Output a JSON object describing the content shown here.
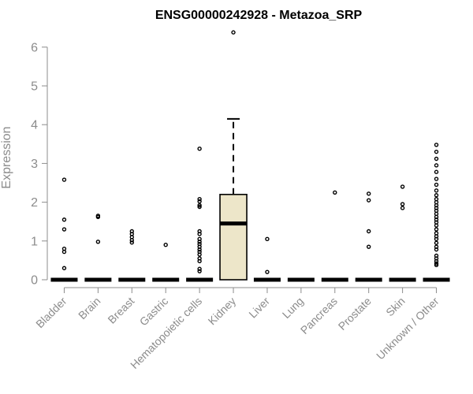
{
  "chart_data": {
    "type": "box",
    "title": "ENSG00000242928 - Metazoa_SRP",
    "xlabel": "",
    "ylabel": "Expression",
    "ylim": [
      0,
      6.5
    ],
    "yticks": [
      0,
      1,
      2,
      3,
      4,
      5,
      6
    ],
    "grid": false,
    "colors": {
      "box_fill": "#ede6c9",
      "stroke": "#000000",
      "tick_text": "#8c8c8c",
      "title": "#000000"
    },
    "categories": [
      "Bladder",
      "Brain",
      "Breast",
      "Gastric",
      "Hematopoietic cells",
      "Kidney",
      "Liver",
      "Lung",
      "Pancreas",
      "Prostate",
      "Skin",
      "Unknown / Other"
    ],
    "boxes": [
      {
        "category": "Bladder",
        "q1": 0,
        "median": 0,
        "q3": 0,
        "whisker_low": 0,
        "whisker_high": 0,
        "outliers": [
          2.58,
          1.55,
          1.3,
          0.8,
          0.72,
          0.3
        ]
      },
      {
        "category": "Brain",
        "q1": 0,
        "median": 0,
        "q3": 0,
        "whisker_low": 0,
        "whisker_high": 0,
        "outliers": [
          1.65,
          1.62,
          0.98
        ]
      },
      {
        "category": "Breast",
        "q1": 0,
        "median": 0,
        "q3": 0,
        "whisker_low": 0,
        "whisker_high": 0,
        "outliers": [
          1.25,
          1.18,
          1.1,
          1.02,
          0.96
        ]
      },
      {
        "category": "Gastric",
        "q1": 0,
        "median": 0,
        "q3": 0,
        "whisker_low": 0,
        "whisker_high": 0,
        "outliers": [
          0.9
        ]
      },
      {
        "category": "Hematopoietic cells",
        "q1": 0,
        "median": 0,
        "q3": 0,
        "whisker_low": 0,
        "whisker_high": 0,
        "outliers": [
          3.38,
          2.08,
          2.02,
          1.92,
          1.88,
          1.25,
          1.18,
          1.05,
          0.98,
          0.92,
          0.85,
          0.78,
          0.72,
          0.65,
          0.55,
          0.48,
          0.28,
          0.22
        ]
      },
      {
        "category": "Kidney",
        "q1": 0,
        "median": 1.45,
        "q3": 2.2,
        "whisker_low": 0,
        "whisker_high": 4.15,
        "outliers": [
          6.38
        ]
      },
      {
        "category": "Liver",
        "q1": 0,
        "median": 0,
        "q3": 0,
        "whisker_low": 0,
        "whisker_high": 0,
        "outliers": [
          1.05,
          0.2
        ]
      },
      {
        "category": "Lung",
        "q1": 0,
        "median": 0,
        "q3": 0,
        "whisker_low": 0,
        "whisker_high": 0,
        "outliers": []
      },
      {
        "category": "Pancreas",
        "q1": 0,
        "median": 0,
        "q3": 0,
        "whisker_low": 0,
        "whisker_high": 0,
        "outliers": [
          2.25
        ]
      },
      {
        "category": "Prostate",
        "q1": 0,
        "median": 0,
        "q3": 0,
        "whisker_low": 0,
        "whisker_high": 0,
        "outliers": [
          2.22,
          2.05,
          1.25,
          0.85
        ]
      },
      {
        "category": "Skin",
        "q1": 0,
        "median": 0,
        "q3": 0,
        "whisker_low": 0,
        "whisker_high": 0,
        "outliers": [
          2.4,
          1.95,
          1.85
        ]
      },
      {
        "category": "Unknown / Other",
        "q1": 0,
        "median": 0,
        "q3": 0,
        "whisker_low": 0,
        "whisker_high": 0,
        "outliers": [
          3.48,
          3.3,
          3.12,
          2.95,
          2.78,
          2.6,
          2.45,
          2.3,
          2.18,
          2.08,
          2.0,
          1.92,
          1.85,
          1.78,
          1.7,
          1.62,
          1.55,
          1.48,
          1.4,
          1.3,
          1.2,
          1.12,
          1.05,
          0.95,
          0.85,
          0.78,
          0.62,
          0.55,
          0.48,
          0.42,
          0.38
        ]
      }
    ]
  }
}
